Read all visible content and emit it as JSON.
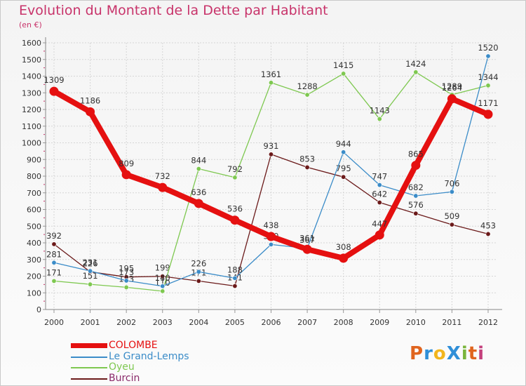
{
  "header": {
    "title": "Evolution du Montant de la Dette par Habitant",
    "unit": "(en €)"
  },
  "brand": {
    "text": "ProXiti",
    "letters": [
      "P",
      "r",
      "o",
      "X",
      "i",
      "t",
      "i"
    ],
    "colors": [
      "#e0641e",
      "#2f8fd8",
      "#f2b51c",
      "#2f8fd8",
      "#7ab53c",
      "#e0641e",
      "#c4407c"
    ]
  },
  "chart_data": {
    "type": "line",
    "title": "Evolution du Montant de la Dette par Habitant",
    "ylabel": "(en €)",
    "xlabel": "",
    "x": [
      "2000",
      "2001",
      "2002",
      "2003",
      "2004",
      "2005",
      "2006",
      "2007",
      "2008",
      "2009",
      "2010",
      "2011",
      "2012"
    ],
    "ylim": [
      0,
      1600
    ],
    "yticks": [
      0,
      100,
      200,
      300,
      400,
      500,
      600,
      700,
      800,
      900,
      1000,
      1100,
      1200,
      1300,
      1400,
      1500,
      1600
    ],
    "grid": true,
    "legend_position": "bottom-left",
    "series": [
      {
        "name": "Burcin",
        "color": "#6b1a1a",
        "values": [
          392,
          226,
          195,
          199,
          171,
          141,
          931,
          853,
          795,
          642,
          576,
          509,
          453
        ],
        "labels": [
          "392",
          "226",
          "195",
          "199",
          "171",
          "141",
          "931",
          "853",
          "795",
          "642",
          "576",
          "509",
          "453"
        ]
      },
      {
        "name": "Oyeu",
        "color": "#7ec850",
        "values": [
          171,
          151,
          133,
          110,
          844,
          792,
          1361,
          1288,
          1415,
          1143,
          1424,
          1289,
          1344
        ],
        "labels": [
          "171",
          "151",
          "133",
          "110",
          "844",
          "792",
          "1361",
          "1288",
          "1415",
          "1143",
          "1424",
          "1289",
          "1344"
        ]
      },
      {
        "name": "Le Grand-Lemps",
        "color": "#3b8cc8",
        "values": [
          281,
          231,
          173,
          140,
          226,
          188,
          390,
          367,
          944,
          747,
          682,
          706,
          1520
        ],
        "labels": [
          "281",
          "231",
          "173",
          "140",
          "226",
          "188",
          "390",
          "367",
          "944",
          "747",
          "682",
          "706",
          "1520"
        ]
      },
      {
        "name": "COLOMBE",
        "color": "#e51010",
        "values": [
          1309,
          1186,
          809,
          732,
          636,
          536,
          438,
          361,
          308,
          447,
          865,
          1264,
          1171
        ],
        "labels": [
          "1309",
          "1186",
          "809",
          "732",
          "636",
          "536",
          "438",
          "361",
          "308",
          "447",
          "865",
          "1264",
          "1171"
        ]
      }
    ]
  },
  "legend": {
    "items": [
      {
        "label": "COLOMBE",
        "color": "#e51010",
        "thick": true
      },
      {
        "label": "Le Grand-Lemps",
        "color": "#3b8cc8",
        "thick": false
      },
      {
        "label": "Oyeu",
        "color": "#7ec850",
        "thick": false
      },
      {
        "label": "Burcin",
        "color": "#6b1a1a",
        "thick": false
      }
    ]
  }
}
